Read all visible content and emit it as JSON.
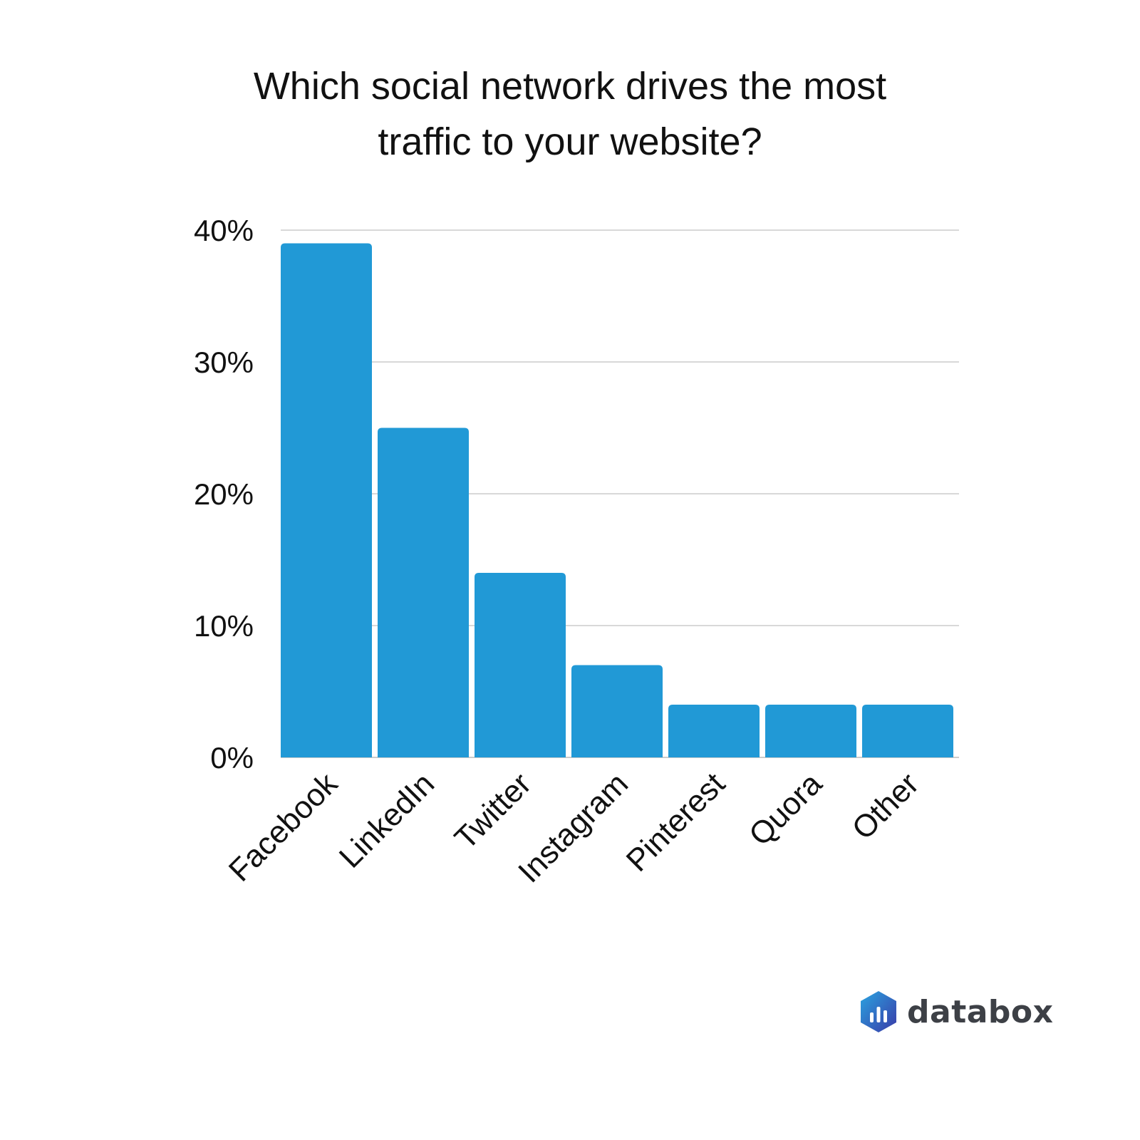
{
  "title": {
    "line1": "Which social network drives the most",
    "line2": "traffic to your website?"
  },
  "brand": {
    "name": "databox",
    "icon": "databox-logo-icon"
  },
  "colors": {
    "bar": "#2199D6",
    "grid": "#CCCCCC",
    "text": "#111111"
  },
  "chart_data": {
    "type": "bar",
    "title": "Which social network drives the most traffic to your website?",
    "categories": [
      "Facebook",
      "LinkedIn",
      "Twitter",
      "Instagram",
      "Pinterest",
      "Quora",
      "Other"
    ],
    "values": [
      39,
      25,
      14,
      7,
      4,
      4,
      4
    ],
    "unit": "%",
    "ylim": [
      0,
      40
    ],
    "yticks": [
      "0%",
      "10%",
      "20%",
      "30%",
      "40%"
    ],
    "grid": true,
    "legend": "none"
  }
}
